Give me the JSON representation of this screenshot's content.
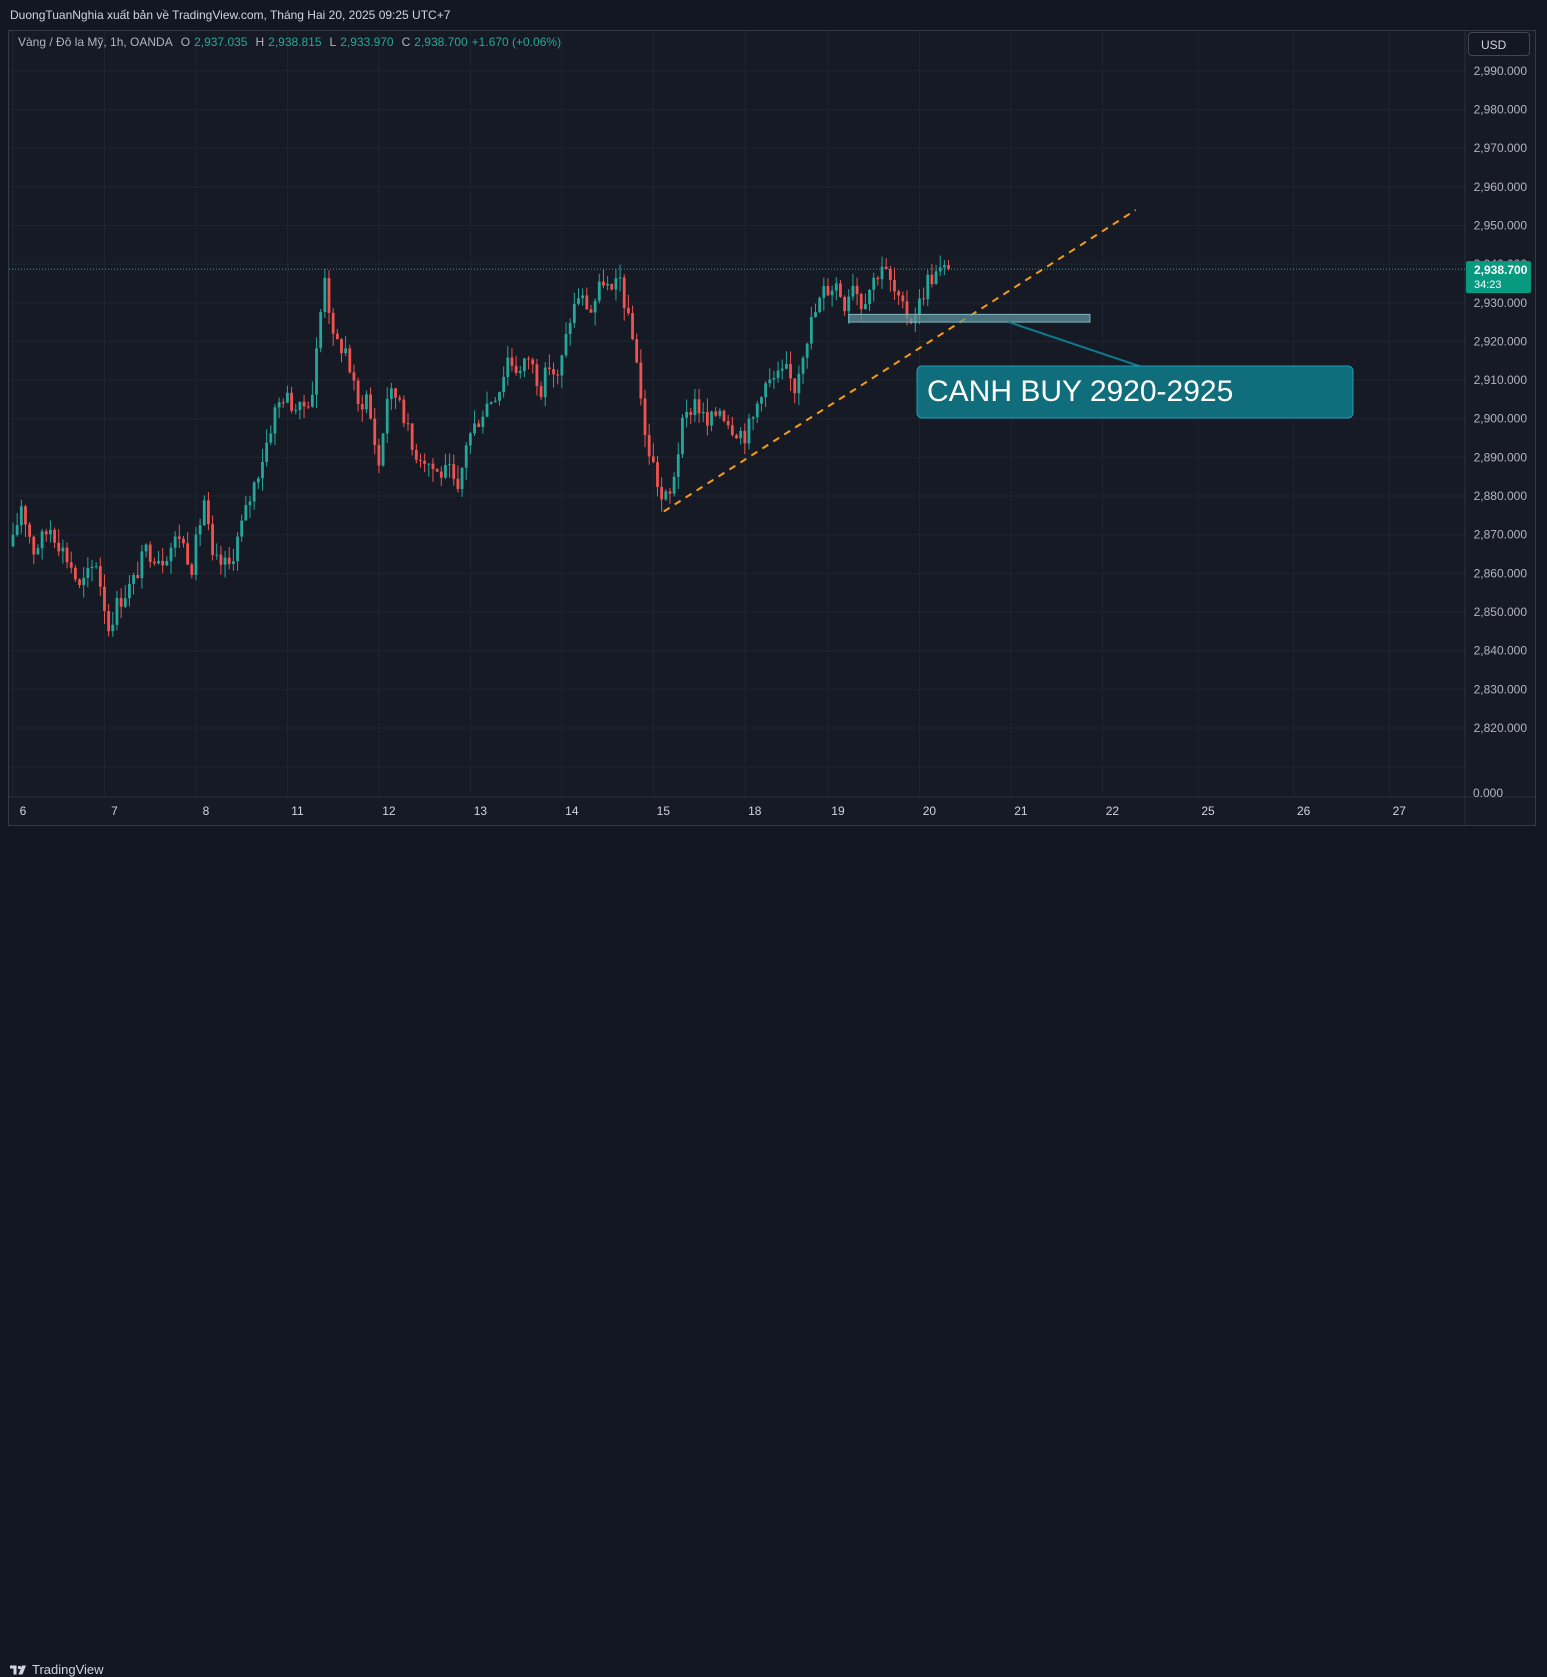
{
  "header": {
    "publisher_line": "DuongTuanNghia xuất bản về TradingView.com, Tháng Hai 20, 2025 09:25 UTC+7"
  },
  "legend": {
    "symbol": "Vàng / Đô la Mỹ, 1h, OANDA",
    "open_key": "O",
    "open": "2,937.035",
    "high_key": "H",
    "high": "2,938.815",
    "low_key": "L",
    "low": "2,933.970",
    "close_key": "C",
    "close": "2,938.700",
    "change": "+1.670 (+0.06%)"
  },
  "currency_button": "USD",
  "price_badge": {
    "price": "2,938.700",
    "countdown": "34:23"
  },
  "annotation": {
    "text": "CANH BUY 2920-2925"
  },
  "brand": {
    "name": "TradingView"
  },
  "colors": {
    "up": "#26a69a",
    "down": "#ef5350",
    "trendline": "#f39c12",
    "callout": "#106d7b",
    "background": "#161a25"
  },
  "chart_data": {
    "type": "candlestick",
    "title": "",
    "xlabel": "",
    "ylabel": "",
    "ylim": [
      2812,
      2996
    ],
    "y_ticks": [
      "2,990.000",
      "2,980.000",
      "2,970.000",
      "2,960.000",
      "2,950.000",
      "2,940.000",
      "2,930.000",
      "2,920.000",
      "2,910.000",
      "2,900.000",
      "2,890.000",
      "2,880.000",
      "2,870.000",
      "2,860.000",
      "2,850.000",
      "2,840.000",
      "2,830.000",
      "2,820.000"
    ],
    "y_tick_values": [
      2990,
      2980,
      2970,
      2960,
      2950,
      2940,
      2930,
      2920,
      2910,
      2900,
      2890,
      2880,
      2870,
      2860,
      2850,
      2840,
      2830,
      2820
    ],
    "zero_tick": "0.000",
    "x_ticks": [
      "6",
      "7",
      "8",
      "11",
      "12",
      "13",
      "14",
      "15",
      "18",
      "19",
      "20",
      "21",
      "22",
      "25",
      "26",
      "27"
    ],
    "x_tick_positions": [
      0,
      22,
      44,
      66,
      88,
      110,
      132,
      154,
      176,
      196,
      218,
      240,
      262,
      285,
      308,
      331
    ],
    "current_price": 2938.7,
    "last_bar_index": 225,
    "candle_keypoints": [
      [
        0,
        2868
      ],
      [
        2,
        2878
      ],
      [
        5,
        2866
      ],
      [
        9,
        2872
      ],
      [
        14,
        2862
      ],
      [
        16,
        2856
      ],
      [
        20,
        2863
      ],
      [
        23,
        2846
      ],
      [
        25,
        2852
      ],
      [
        29,
        2858
      ],
      [
        32,
        2866
      ],
      [
        36,
        2864
      ],
      [
        40,
        2870
      ],
      [
        43,
        2862
      ],
      [
        46,
        2879
      ],
      [
        48,
        2863
      ],
      [
        52,
        2862
      ],
      [
        56,
        2876
      ],
      [
        60,
        2890
      ],
      [
        63,
        2902
      ],
      [
        65,
        2906
      ],
      [
        69,
        2902
      ],
      [
        72,
        2907
      ],
      [
        75,
        2938
      ],
      [
        77,
        2920
      ],
      [
        80,
        2918
      ],
      [
        83,
        2903
      ],
      [
        85,
        2906
      ],
      [
        88,
        2888
      ],
      [
        90,
        2906
      ],
      [
        93,
        2906
      ],
      [
        96,
        2892
      ],
      [
        99,
        2890
      ],
      [
        102,
        2886
      ],
      [
        105,
        2886
      ],
      [
        107,
        2880
      ],
      [
        109,
        2894
      ],
      [
        111,
        2898
      ],
      [
        114,
        2904
      ],
      [
        117,
        2908
      ],
      [
        119,
        2916
      ],
      [
        122,
        2912
      ],
      [
        124,
        2916
      ],
      [
        127,
        2908
      ],
      [
        129,
        2914
      ],
      [
        131,
        2910
      ],
      [
        134,
        2926
      ],
      [
        136,
        2932
      ],
      [
        139,
        2928
      ],
      [
        142,
        2936
      ],
      [
        144,
        2932
      ],
      [
        146,
        2936
      ],
      [
        148,
        2925
      ],
      [
        150,
        2916
      ],
      [
        152,
        2895
      ],
      [
        154,
        2888
      ],
      [
        156,
        2879
      ],
      [
        158,
        2880
      ],
      [
        161,
        2898
      ],
      [
        164,
        2905
      ],
      [
        167,
        2898
      ],
      [
        170,
        2903
      ],
      [
        173,
        2898
      ],
      [
        176,
        2896
      ],
      [
        178,
        2900
      ],
      [
        180,
        2908
      ],
      [
        183,
        2910
      ],
      [
        186,
        2912
      ],
      [
        188,
        2908
      ],
      [
        190,
        2918
      ],
      [
        192,
        2925
      ],
      [
        195,
        2933
      ],
      [
        198,
        2935
      ],
      [
        200,
        2930
      ],
      [
        202,
        2936
      ],
      [
        204,
        2930
      ],
      [
        206,
        2934
      ],
      [
        209,
        2940
      ],
      [
        211,
        2935
      ],
      [
        213,
        2930
      ],
      [
        214,
        2928
      ],
      [
        216,
        2926
      ],
      [
        218,
        2930
      ],
      [
        220,
        2936
      ],
      [
        223,
        2938
      ],
      [
        225,
        2938.7
      ]
    ],
    "annotations": [
      {
        "type": "trendline",
        "from": [
          156.5,
          2876
        ],
        "to": [
          270,
          2954
        ]
      },
      {
        "type": "zone",
        "from_bar": 201,
        "to_bar": 259,
        "y_range": [
          2925,
          2927
        ]
      },
      {
        "type": "callout",
        "text": "CANH BUY 2920-2925"
      }
    ]
  }
}
